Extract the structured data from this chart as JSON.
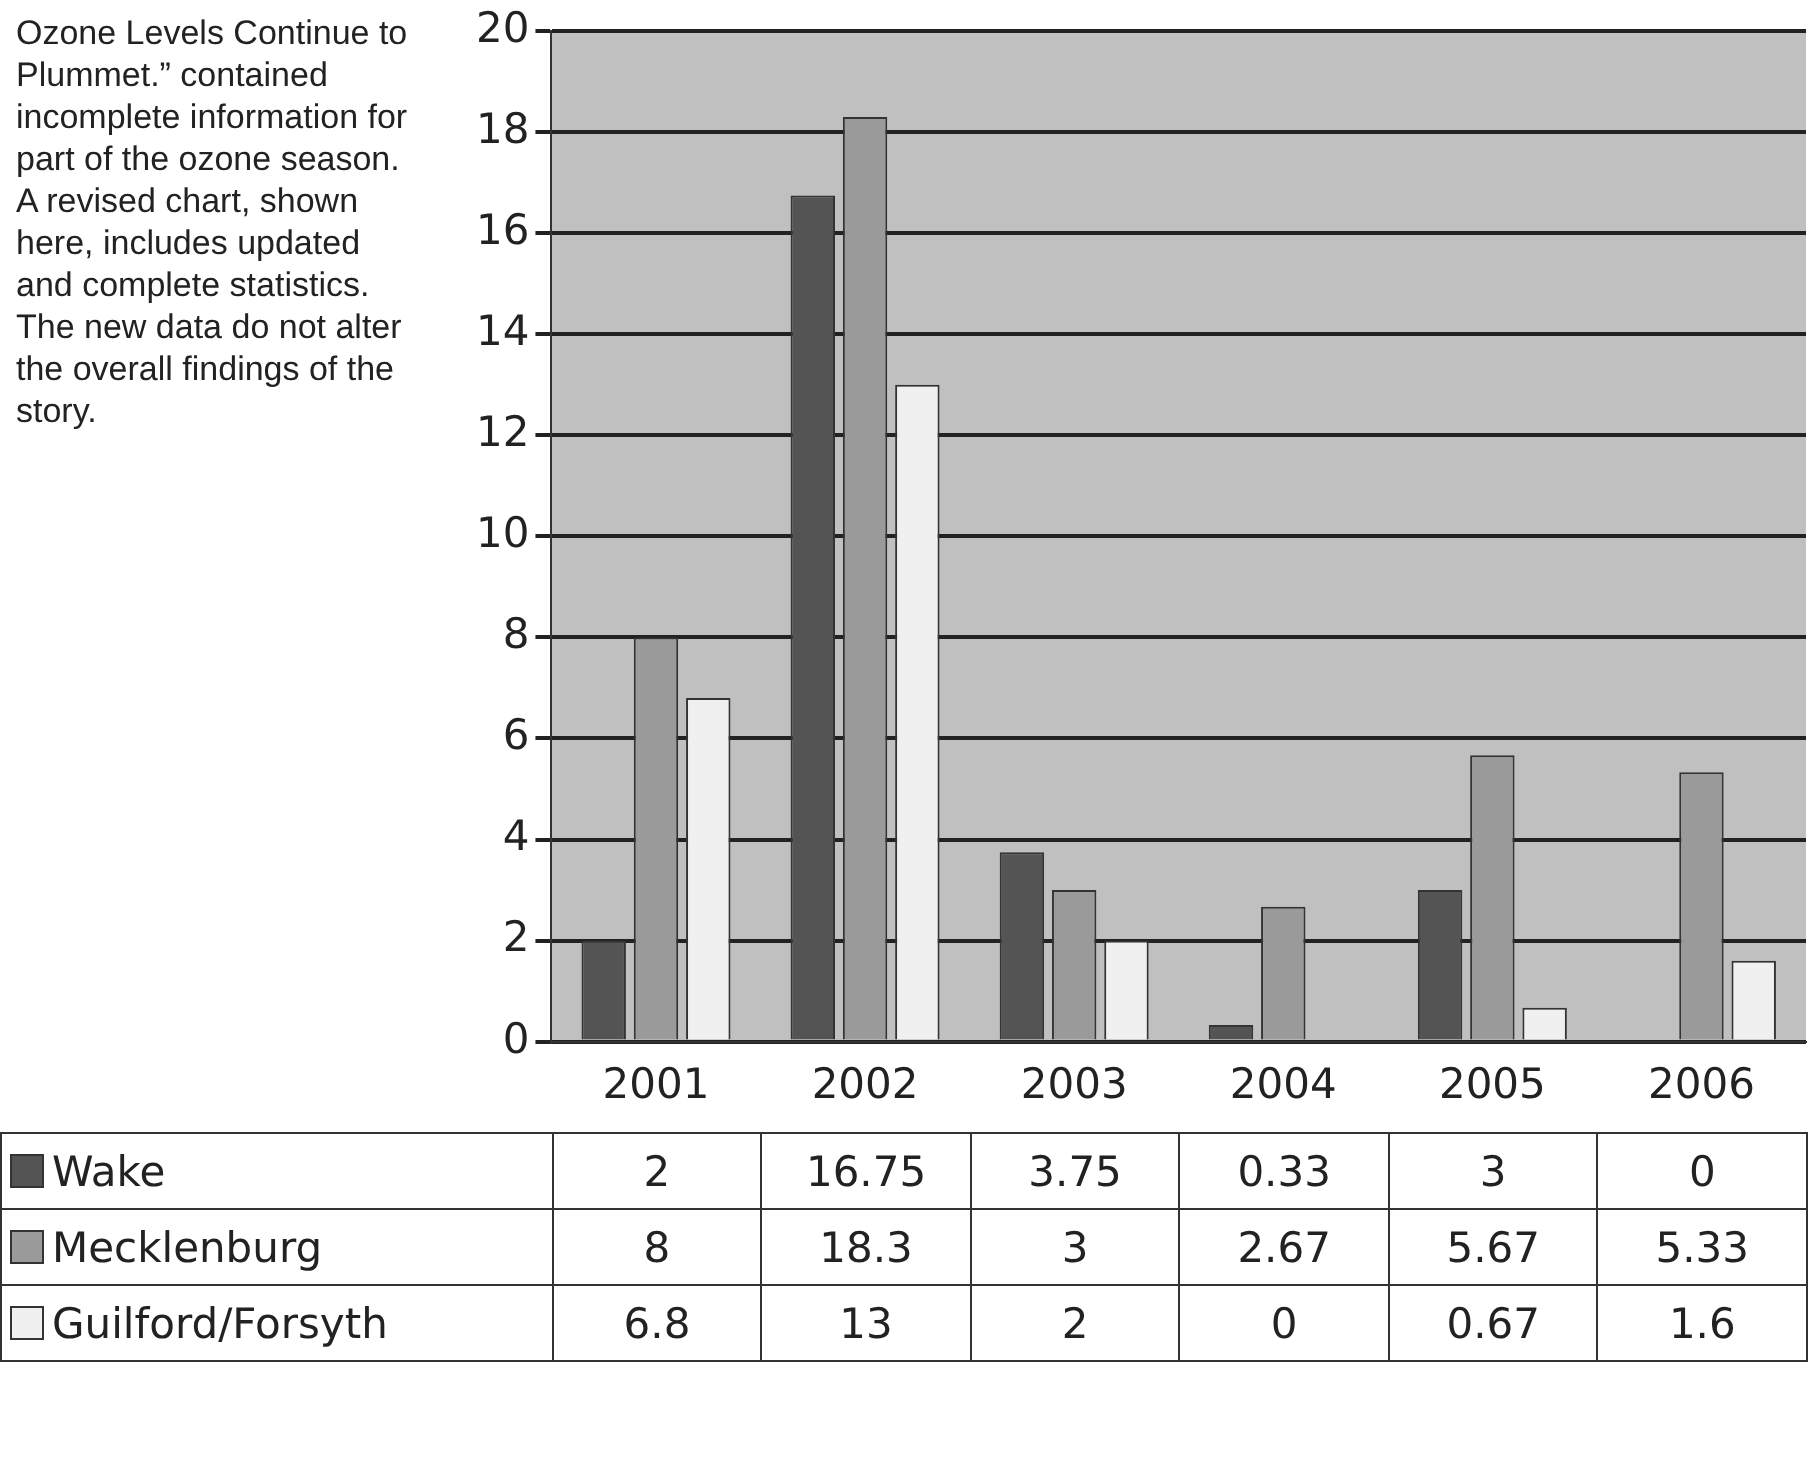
{
  "chart_data": {
    "type": "bar",
    "categories": [
      "2001",
      "2002",
      "2003",
      "2004",
      "2005",
      "2006"
    ],
    "series": [
      {
        "name": "Wake",
        "color": "#545454",
        "values": [
          2,
          16.75,
          3.75,
          0.33,
          3,
          0
        ]
      },
      {
        "name": "Mecklenburg",
        "color": "#9a9a9a",
        "values": [
          8,
          18.3,
          3,
          2.67,
          5.67,
          5.33
        ]
      },
      {
        "name": "Guilford/Forsyth",
        "color": "#f0f0f0",
        "values": [
          6.8,
          13,
          2,
          0,
          0.67,
          1.6
        ]
      }
    ],
    "ylim": [
      0,
      20
    ],
    "yticks": [
      0,
      2,
      4,
      6,
      8,
      10,
      12,
      14,
      16,
      18,
      20
    ],
    "grid": "y",
    "legend": "bottom",
    "data_labels": true,
    "annotations": [
      "Ozone Levels Continue to Plummet.” contained incomplete information for part of the ozone season. A revised chart, shown here, includes updated and complete statistics. The new data do not alter the overall findings of the story."
    ]
  }
}
